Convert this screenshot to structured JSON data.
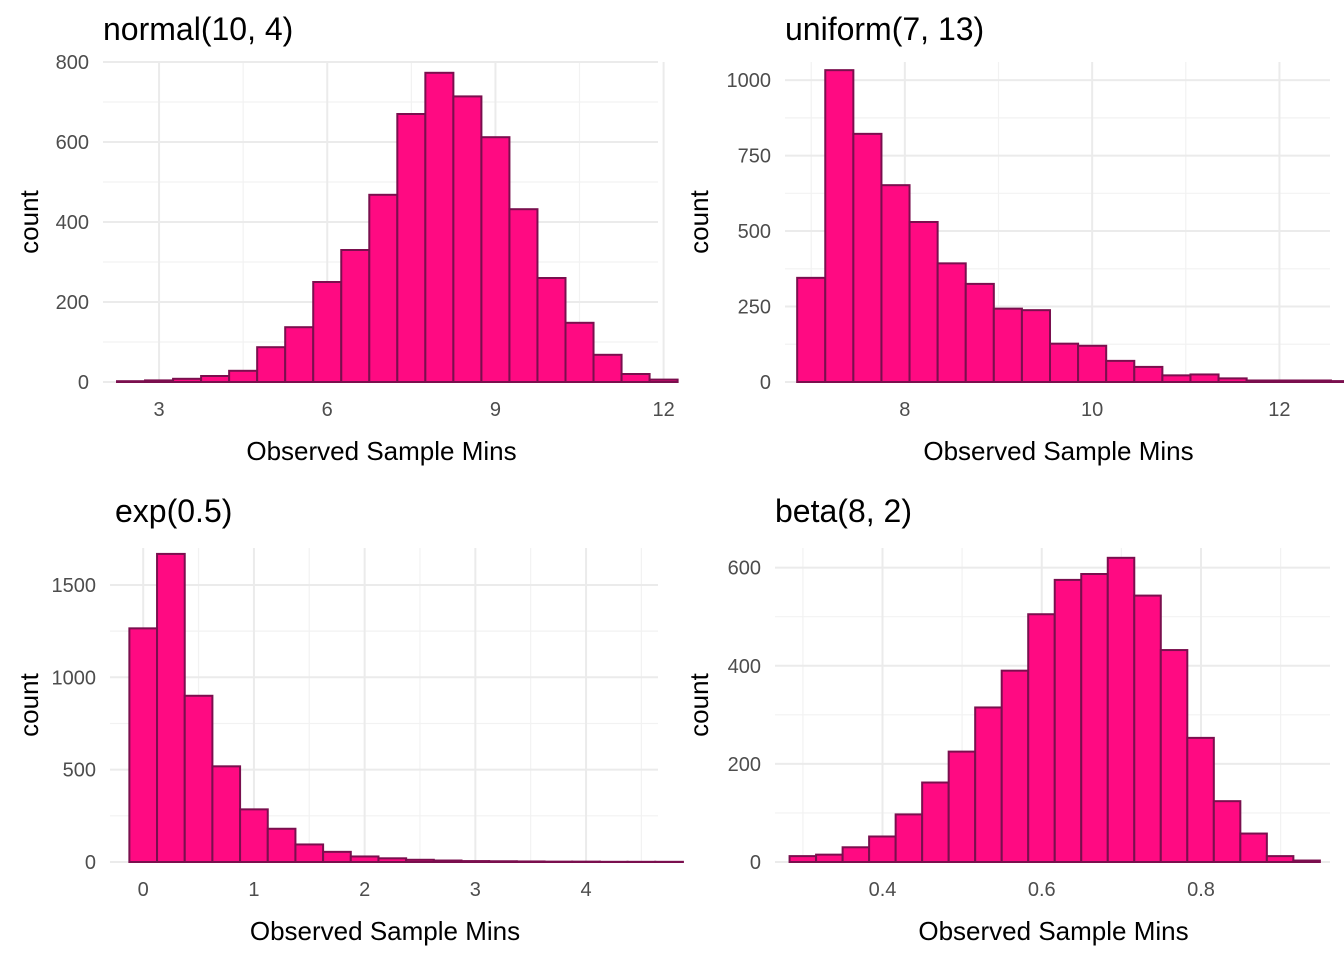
{
  "chart_data": [
    {
      "type": "bar",
      "title": "normal(10, 4)",
      "xlabel": "Observed Sample Mins",
      "ylabel": "count",
      "xlim": [
        2.0,
        11.9
      ],
      "ylim": [
        0,
        800
      ],
      "xticks": [
        3,
        6,
        9,
        12
      ],
      "yticks": [
        0,
        200,
        400,
        600,
        800
      ],
      "bin_width": 0.5,
      "bin_start": 2.25,
      "values": [
        2,
        4,
        8,
        15,
        28,
        87,
        137,
        250,
        330,
        468,
        670,
        773,
        714,
        612,
        432,
        260,
        148,
        68,
        20,
        6
      ],
      "grid": true
    },
    {
      "type": "bar",
      "title": "uniform(7, 13)",
      "xlabel": "Observed Sample Mins",
      "ylabel": "count",
      "xlim": [
        6.72,
        12.54
      ],
      "ylim": [
        0,
        1060
      ],
      "xticks": [
        8,
        10,
        12
      ],
      "yticks": [
        0,
        250,
        500,
        750,
        1000
      ],
      "bin_width": 0.3,
      "bin_start": 6.85,
      "values": [
        345,
        1033,
        822,
        652,
        530,
        393,
        325,
        243,
        238,
        127,
        120,
        70,
        50,
        22,
        25,
        12,
        5,
        5,
        5,
        3
      ],
      "grid": true
    },
    {
      "type": "bar",
      "title": "exp(0.5)",
      "xlabel": "Observed Sample Mins",
      "ylabel": "count",
      "xlim": [
        -0.3,
        4.65
      ],
      "ylim": [
        0,
        1700
      ],
      "xticks": [
        0,
        1,
        2,
        3,
        4
      ],
      "yticks": [
        0,
        500,
        1000,
        1500
      ],
      "bin_width": 0.25,
      "bin_start": -0.125,
      "values": [
        1265,
        1668,
        900,
        518,
        285,
        180,
        95,
        55,
        30,
        20,
        12,
        8,
        5,
        4,
        3,
        2,
        2,
        1,
        1,
        1
      ],
      "grid": true
    },
    {
      "type": "bar",
      "title": "beta(8, 2)",
      "xlabel": "Observed Sample Mins",
      "ylabel": "count",
      "xlim": [
        0.265,
        0.962
      ],
      "ylim": [
        0,
        640
      ],
      "xticks": [
        0.4,
        0.6,
        0.8
      ],
      "yticks": [
        0,
        200,
        400,
        600
      ],
      "bin_width": 0.0333,
      "bin_start": 0.2833,
      "values": [
        12,
        15,
        30,
        52,
        97,
        162,
        225,
        315,
        390,
        505,
        575,
        587,
        620,
        543,
        432,
        253,
        124,
        58,
        12,
        3
      ],
      "grid": true
    }
  ],
  "colors": {
    "bar_fill": "#FF0A82",
    "bar_stroke": "#7A0F4E",
    "grid": "#EBEBEB",
    "tick_text": "#4D4D4D"
  }
}
